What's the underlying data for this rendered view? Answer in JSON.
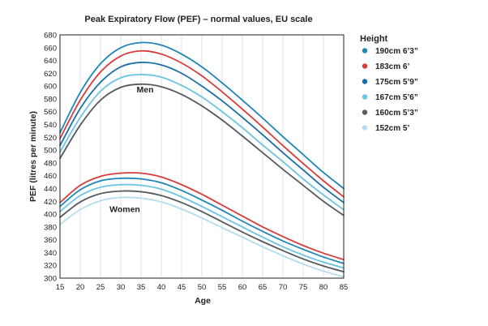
{
  "chart_data": {
    "type": "line",
    "title": "Peak Expiratory Flow (PEF) – normal values, EU scale",
    "xlabel": "Age",
    "ylabel": "PEF (litres per minute)",
    "xlim": [
      15,
      85
    ],
    "ylim": [
      300,
      680
    ],
    "xticks": [
      15,
      20,
      25,
      30,
      35,
      40,
      45,
      50,
      55,
      60,
      65,
      70,
      75,
      80,
      85
    ],
    "yticks": [
      300,
      320,
      340,
      360,
      380,
      400,
      420,
      440,
      460,
      480,
      500,
      520,
      540,
      560,
      580,
      600,
      620,
      640,
      660,
      680
    ],
    "grid": "vertical",
    "legend_title": "Height",
    "legend_position": "right",
    "annotations": [
      {
        "text": "Men",
        "x": 36,
        "y": 590
      },
      {
        "text": "Women",
        "x": 31,
        "y": 403
      }
    ],
    "x": [
      15,
      20,
      25,
      30,
      35,
      40,
      45,
      50,
      55,
      60,
      65,
      70,
      75,
      80,
      85
    ],
    "series": [
      {
        "name": "190cm  6’3”",
        "group": "men",
        "color": "#1e86b8",
        "values": [
          527,
          590,
          635,
          660,
          668,
          664,
          650,
          630,
          605,
          578,
          550,
          521,
          493,
          465,
          440
        ]
      },
      {
        "name": "183cm  6’",
        "group": "men",
        "color": "#d93c3c",
        "values": [
          518,
          578,
          622,
          647,
          655,
          650,
          636,
          616,
          591,
          564,
          536,
          507,
          479,
          452,
          427
        ]
      },
      {
        "name": "175cm  5’9”",
        "group": "men",
        "color": "#1a6fa8",
        "values": [
          507,
          565,
          606,
          630,
          637,
          633,
          620,
          600,
          577,
          551,
          524,
          496,
          469,
          442,
          418
        ]
      },
      {
        "name": "167cm  5’6”",
        "group": "men",
        "color": "#6cc4e4",
        "values": [
          497,
          551,
          592,
          613,
          618,
          614,
          601,
          583,
          560,
          535,
          508,
          482,
          455,
          430,
          407
        ]
      },
      {
        "name": "160cm  5’3”",
        "group": "men",
        "color": "#555a5f",
        "values": [
          487,
          539,
          578,
          598,
          603,
          599,
          587,
          569,
          547,
          522,
          496,
          470,
          445,
          420,
          398
        ]
      },
      {
        "name": "190cm  6’3”",
        "group": "women",
        "color": "#d93c3c",
        "values": [
          418,
          445,
          459,
          464,
          464,
          458,
          446,
          431,
          414,
          397,
          380,
          365,
          351,
          339,
          329
        ]
      },
      {
        "name": "183cm  6’",
        "group": "women",
        "color": "#1e86b8",
        "values": [
          412,
          438,
          452,
          456,
          455,
          449,
          437,
          422,
          406,
          389,
          373,
          358,
          345,
          333,
          323
        ]
      },
      {
        "name": "175cm  5’9”",
        "group": "women",
        "color": "#6cc4e4",
        "values": [
          404,
          429,
          442,
          446,
          445,
          439,
          427,
          412,
          396,
          380,
          364,
          349,
          336,
          325,
          316
        ]
      },
      {
        "name": "167cm  5’6”",
        "group": "women",
        "color": "#555a5f",
        "values": [
          395,
          419,
          432,
          436,
          435,
          429,
          418,
          404,
          388,
          372,
          357,
          343,
          330,
          319,
          310
        ]
      },
      {
        "name": "152cm  5’",
        "group": "women",
        "color": "#b4dcef",
        "values": [
          384,
          407,
          421,
          426,
          425,
          419,
          408,
          394,
          379,
          364,
          349,
          335,
          322,
          311,
          302
        ]
      }
    ],
    "legend": [
      {
        "label": "190cm  6’3”",
        "color": "#1e86b8"
      },
      {
        "label": "183cm  6’",
        "color": "#d93c3c"
      },
      {
        "label": "175cm  5’9”",
        "color": "#1a6fa8"
      },
      {
        "label": "167cm  5’6”",
        "color": "#6cc4e4"
      },
      {
        "label": "160cm  5’3”",
        "color": "#555a5f"
      },
      {
        "label": "152cm  5’",
        "color": "#b4dcef"
      }
    ]
  }
}
